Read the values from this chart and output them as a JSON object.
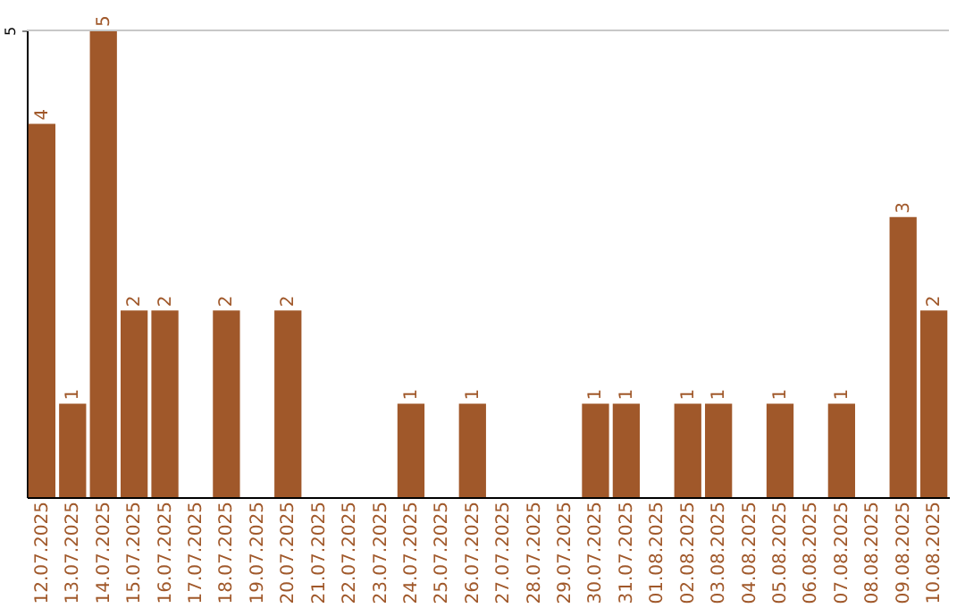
{
  "chart_data": {
    "type": "bar",
    "categories": [
      "12.07.2025",
      "13.07.2025",
      "14.07.2025",
      "15.07.2025",
      "16.07.2025",
      "17.07.2025",
      "18.07.2025",
      "19.07.2025",
      "20.07.2025",
      "21.07.2025",
      "22.07.2025",
      "23.07.2025",
      "24.07.2025",
      "25.07.2025",
      "26.07.2025",
      "27.07.2025",
      "28.07.2025",
      "29.07.2025",
      "30.07.2025",
      "31.07.2025",
      "01.08.2025",
      "02.08.2025",
      "03.08.2025",
      "04.08.2025",
      "05.08.2025",
      "06.08.2025",
      "07.08.2025",
      "08.08.2025",
      "09.08.2025",
      "10.08.2025"
    ],
    "values": [
      4,
      1,
      5,
      2,
      2,
      0,
      2,
      0,
      2,
      0,
      0,
      0,
      1,
      0,
      1,
      0,
      0,
      0,
      1,
      1,
      0,
      1,
      1,
      0,
      1,
      0,
      1,
      0,
      3,
      2
    ],
    "value_labels": [
      "4",
      "1",
      "5",
      "2",
      "2",
      null,
      "2",
      null,
      "2",
      null,
      null,
      null,
      "1",
      null,
      "1",
      null,
      null,
      null,
      "1",
      "1",
      null,
      "1",
      "1",
      null,
      "1",
      null,
      "1",
      null,
      "3",
      "2"
    ],
    "color": "#a0582a",
    "ylim": [
      0,
      5
    ],
    "yticks": [
      5
    ],
    "ref_lines": [
      {
        "axis": "y",
        "value": 5,
        "color": "#c8c8c8"
      }
    ]
  }
}
